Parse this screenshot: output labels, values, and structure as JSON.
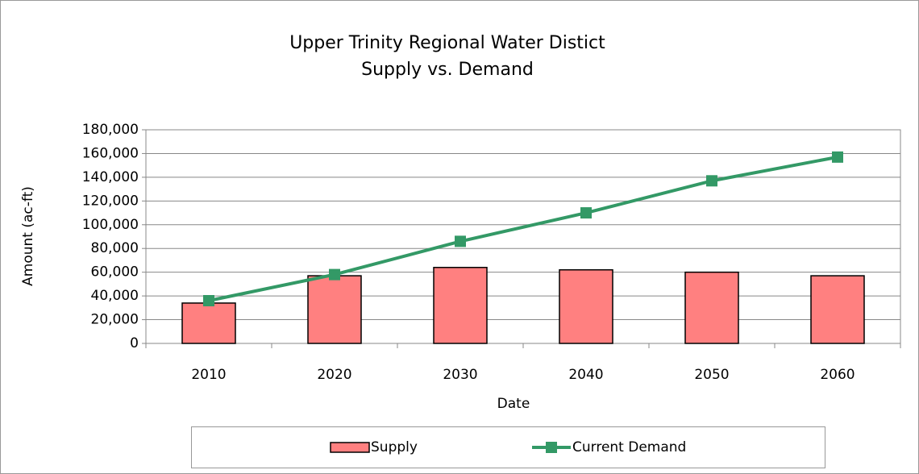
{
  "chart_data": {
    "type": "bar",
    "title": "Upper Trinity Regional Water Distict",
    "subtitle": "Supply vs. Demand",
    "x_label": "Date",
    "y_label": "Amount (ac-ft)",
    "categories": [
      "2010",
      "2020",
      "2030",
      "2040",
      "2050",
      "2060"
    ],
    "series": [
      {
        "name": "Supply",
        "type": "bar",
        "color": "#ff8080",
        "values": [
          34000,
          57000,
          64000,
          62000,
          60000,
          57000
        ]
      },
      {
        "name": "Current Demand",
        "type": "line",
        "color": "#339966",
        "values": [
          36000,
          58000,
          86000,
          110000,
          137000,
          157000
        ]
      }
    ],
    "ylim": [
      0,
      180000
    ],
    "yticks": [
      0,
      {
        "value": 20000,
        "label": "20,000"
      },
      {
        "value": 40000,
        "label": "40,000"
      },
      {
        "value": 60000,
        "label": "60,000"
      },
      {
        "value": 80000,
        "label": "80,000"
      },
      {
        "value": 100000,
        "label": "100,000"
      },
      {
        "value": 120000,
        "label": "120,000"
      },
      {
        "value": 140000,
        "label": "140,000"
      },
      {
        "value": 160000,
        "label": "160,000"
      },
      {
        "value": 180000,
        "label": "180,000"
      }
    ],
    "grid": true,
    "legend": "bottom"
  }
}
